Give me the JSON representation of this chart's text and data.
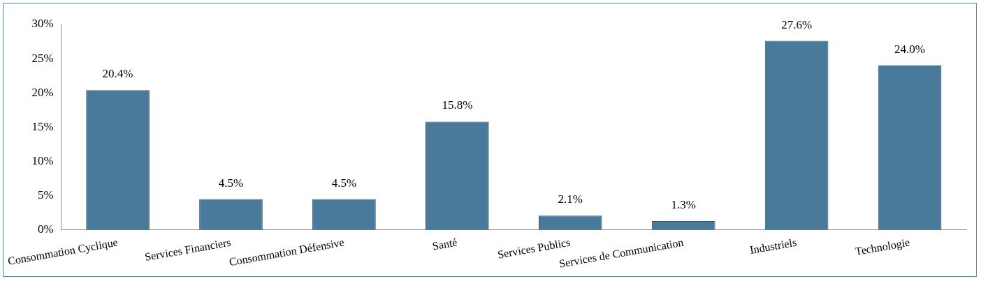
{
  "chart_data": {
    "type": "bar",
    "categories": [
      "Consommation Cyclique",
      "Services Financiers",
      "Consommation Défensive",
      "Santé",
      "Services Publics",
      "Services de Communication",
      "Industriels",
      "Technologie"
    ],
    "values": [
      20.4,
      4.5,
      4.5,
      15.8,
      2.1,
      1.3,
      27.6,
      24.0
    ],
    "color": "#4a7a9b",
    "value_labels": [
      "20.4%",
      "4.5%",
      "4.5%",
      "15.8%",
      "2.1%",
      "1.3%",
      "27.6%",
      "24.0%"
    ],
    "ylim": [
      0,
      30
    ],
    "yticks": [
      {
        "value": 0,
        "label": "0%"
      },
      {
        "value": 5,
        "label": "5%"
      },
      {
        "value": 10,
        "label": "10%"
      },
      {
        "value": 15,
        "label": "15%"
      },
      {
        "value": 20,
        "label": "20%"
      },
      {
        "value": 25,
        "label": "25%"
      },
      {
        "value": 30,
        "label": "30%"
      }
    ],
    "grid": false,
    "legend": false
  }
}
